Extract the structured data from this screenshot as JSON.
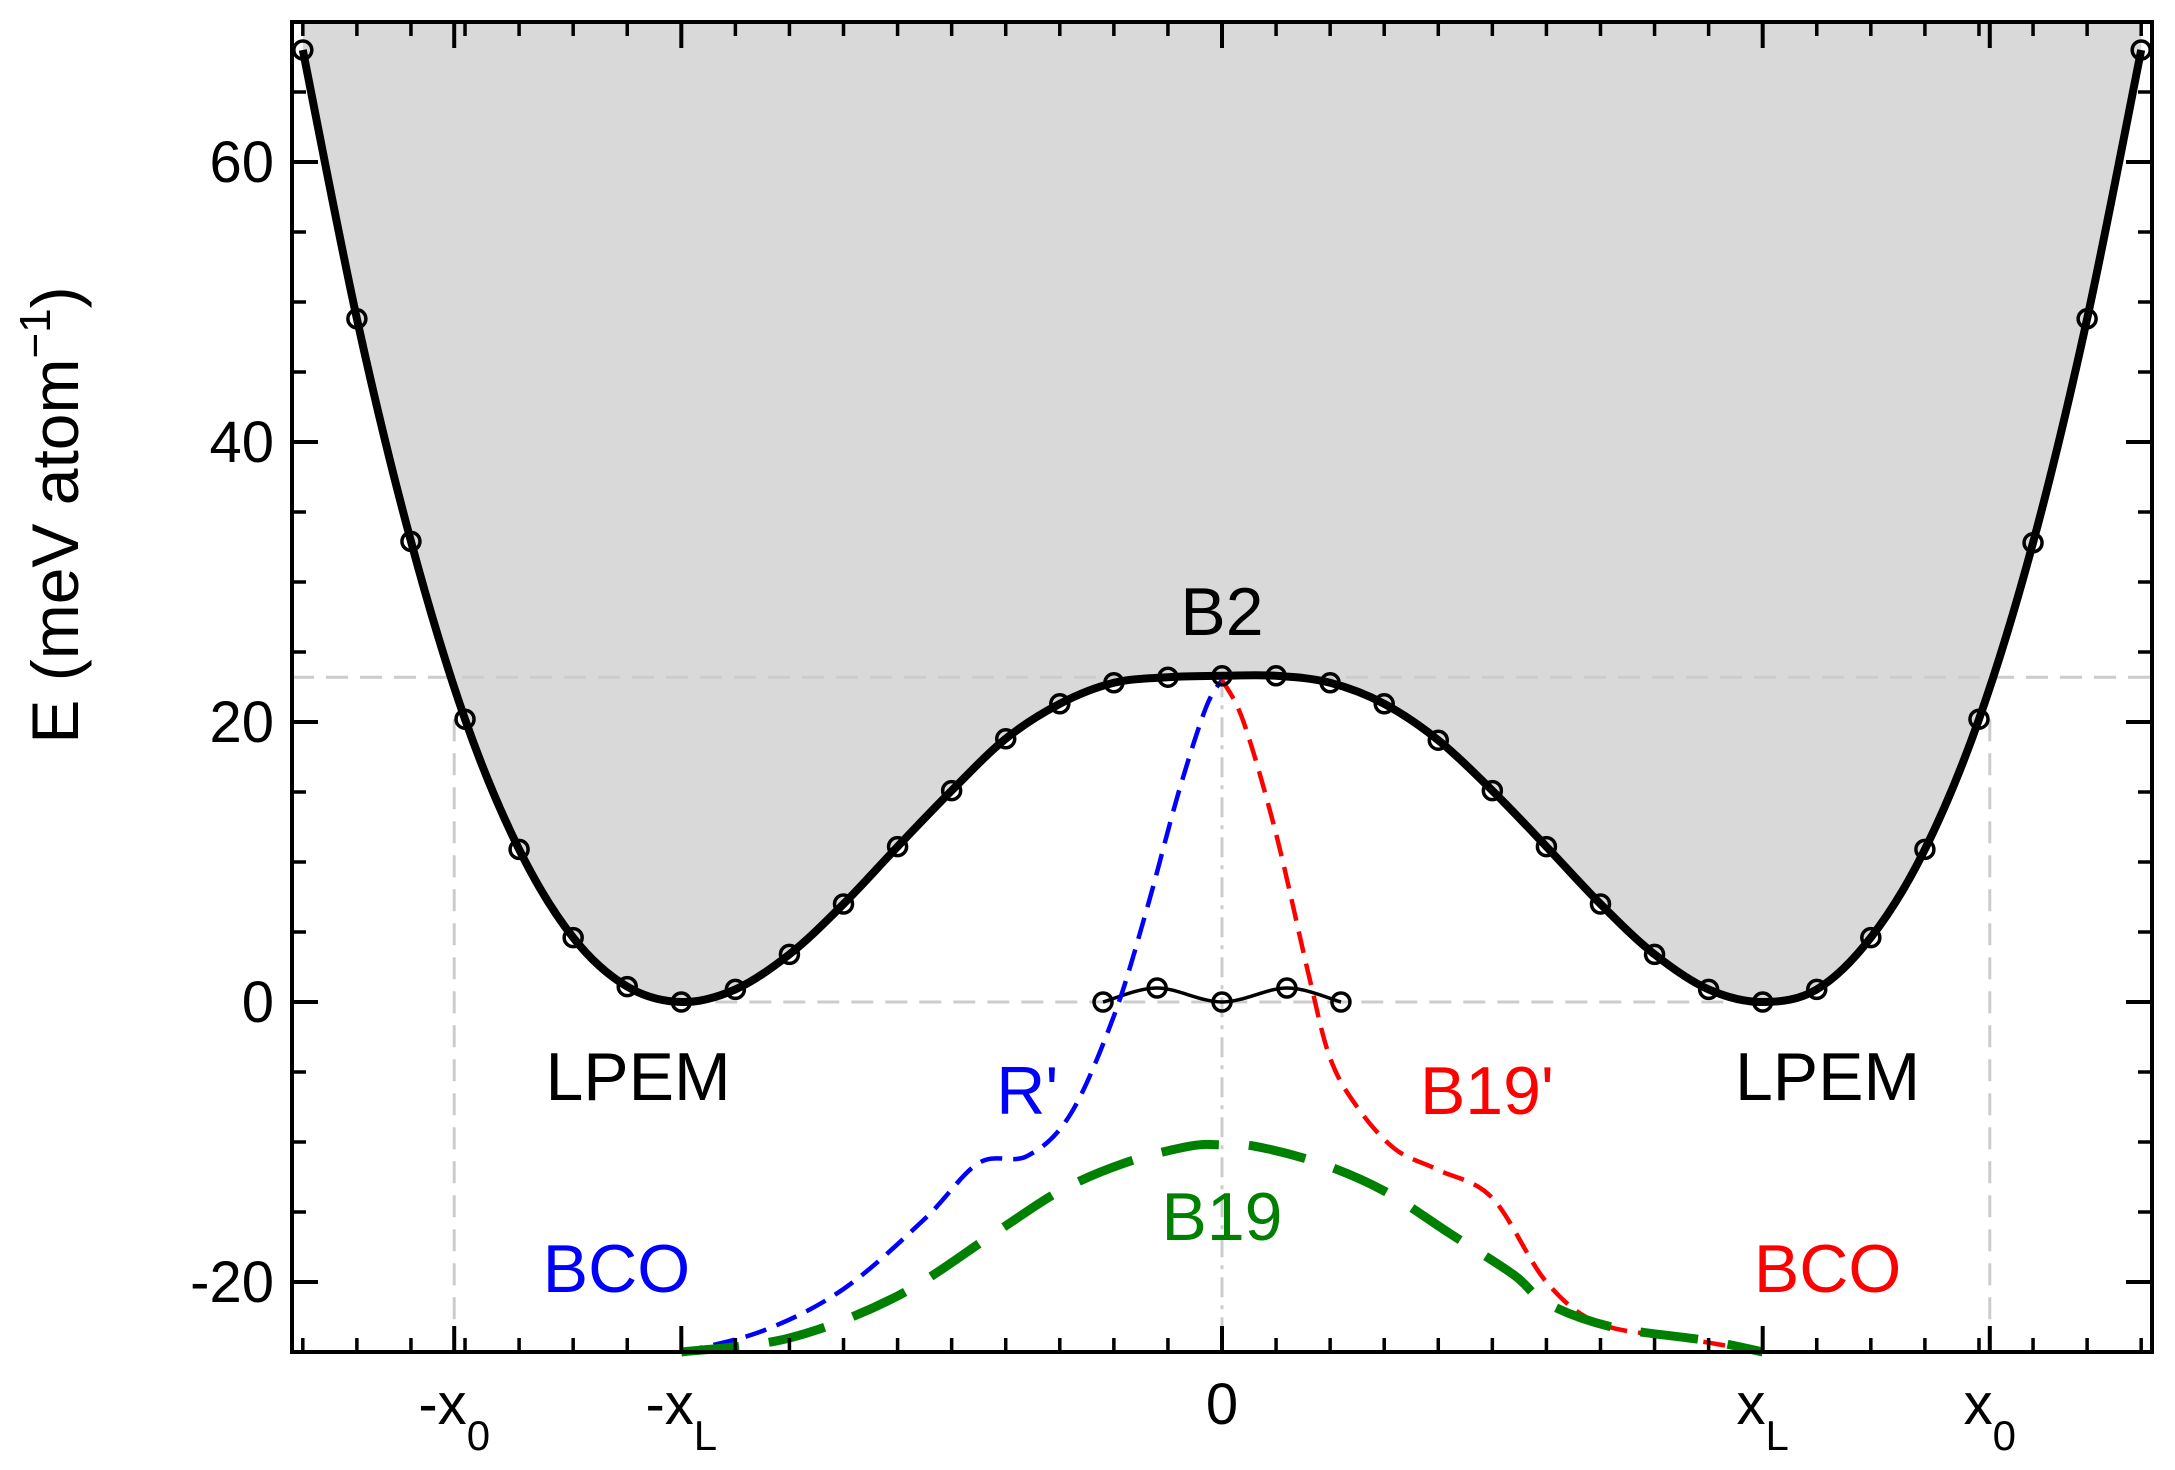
{
  "chart_data": {
    "type": "line",
    "ylabel": {
      "main": "E  (meV atom",
      "superscript": "−1",
      "close": ")"
    },
    "xlim": [
      -1.72,
      1.72
    ],
    "ylim": [
      -25,
      70
    ],
    "yticks": [
      {
        "value": -20,
        "label": "-20"
      },
      {
        "value": 0,
        "label": "0"
      },
      {
        "value": 20,
        "label": "20"
      },
      {
        "value": 40,
        "label": "40"
      },
      {
        "value": 60,
        "label": "60"
      }
    ],
    "xticks": [
      {
        "value": -1.42,
        "label": "-x",
        "sub": "0"
      },
      {
        "value": -1.0,
        "label": "-x",
        "sub": "L"
      },
      {
        "value": 0,
        "label": "0",
        "sub": ""
      },
      {
        "value": 1.0,
        "label": "x",
        "sub": "L"
      },
      {
        "value": 1.42,
        "label": "x",
        "sub": "0"
      }
    ],
    "reference_lines": {
      "b2_energy": 23.2,
      "lpem_energy": 0,
      "x0": 1.42
    },
    "colors": {
      "main": "#000000",
      "fill": "#d9d9d9",
      "blue": "#0000ff",
      "red": "#ff0000",
      "green": "#008000",
      "ref": "#cccccc"
    },
    "series": [
      {
        "kind": "main-curve",
        "style": "solid-black-markers",
        "x": [
          -1.7,
          -1.6,
          -1.5,
          -1.4,
          -1.3,
          -1.2,
          -1.1,
          -1.0,
          -0.9,
          -0.8,
          -0.7,
          -0.6,
          -0.5,
          -0.4,
          -0.3,
          -0.2,
          -0.1,
          0.0,
          0.1,
          0.2,
          0.3,
          0.4,
          0.5,
          0.6,
          0.7,
          0.8,
          0.9,
          1.0,
          1.1,
          1.2,
          1.3,
          1.4,
          1.5,
          1.6,
          1.7
        ],
        "y": [
          68.0,
          48.8,
          32.9,
          20.2,
          10.9,
          4.6,
          1.1,
          0.0,
          0.9,
          3.4,
          7.0,
          11.1,
          15.1,
          18.8,
          21.3,
          22.8,
          23.2,
          23.3,
          23.3,
          22.8,
          21.3,
          18.7,
          15.1,
          11.1,
          7.0,
          3.4,
          0.9,
          0.0,
          0.9,
          4.6,
          10.9,
          20.2,
          32.8,
          48.8,
          68.0
        ]
      },
      {
        "kind": "small-bump",
        "style": "thin-black-markers",
        "x": [
          -0.22,
          -0.12,
          0.0,
          0.12,
          0.22
        ],
        "y": [
          0.0,
          1.0,
          0.0,
          1.0,
          0.0
        ]
      },
      {
        "kind": "left-dashed",
        "style": "dashed-blue",
        "x": [
          -1.0,
          -0.85,
          -0.7,
          -0.55,
          -0.45,
          -0.36,
          -0.28,
          -0.2,
          -0.14,
          -0.08,
          -0.03,
          0.0
        ],
        "y": [
          -25.0,
          -23.5,
          -20.5,
          -15.5,
          -11.5,
          -11.0,
          -8.0,
          -1.0,
          6.5,
          15.0,
          21.0,
          23.0
        ]
      },
      {
        "kind": "right-dashed",
        "style": "dashed-red",
        "x": [
          0.0,
          0.04,
          0.1,
          0.16,
          0.2,
          0.25,
          0.32,
          0.4,
          0.5,
          0.6,
          0.7,
          0.85,
          1.0
        ],
        "y": [
          23.0,
          20.0,
          12.0,
          2.0,
          -4.0,
          -7.5,
          -10.5,
          -12.0,
          -14.0,
          -20.0,
          -23.0,
          -24.0,
          -25.0
        ],
        "points": "B19'"
      },
      {
        "kind": "bottom-dashed",
        "style": "long-dashed-green",
        "x": [
          -1.0,
          -0.8,
          -0.6,
          -0.42,
          -0.3,
          -0.18,
          -0.06,
          0.0,
          0.06,
          0.18,
          0.3,
          0.42,
          0.54,
          0.6,
          0.72,
          0.9,
          1.0
        ],
        "y": [
          -25.0,
          -24.0,
          -21.0,
          -16.5,
          -13.5,
          -11.5,
          -10.3,
          -10.2,
          -10.3,
          -11.5,
          -13.5,
          -16.5,
          -19.5,
          -21.5,
          -23.2,
          -24.2,
          -25.0
        ]
      }
    ],
    "annotations": [
      {
        "text": "B2",
        "x": 0.0,
        "y": 26.2,
        "color": "#000000"
      },
      {
        "text": "LPEM",
        "x": -1.08,
        "y": -7.0,
        "color": "#000000"
      },
      {
        "text": "LPEM",
        "x": 1.12,
        "y": -7.0,
        "color": "#000000"
      },
      {
        "text": "R'",
        "x": -0.36,
        "y": -8.0,
        "color": "#0000ff"
      },
      {
        "text": "B19'",
        "x": 0.49,
        "y": -8.0,
        "color": "#ff0000"
      },
      {
        "text": "B19",
        "x": 0.0,
        "y": -17.0,
        "color": "#008000"
      },
      {
        "text": "BCO",
        "x": -1.12,
        "y": -20.7,
        "color": "#0000ff"
      },
      {
        "text": "BCO",
        "x": 1.12,
        "y": -20.7,
        "color": "#ff0000"
      }
    ]
  }
}
